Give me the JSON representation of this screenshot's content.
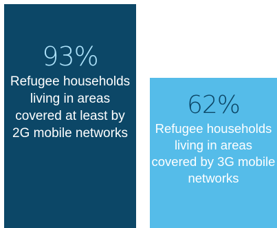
{
  "stats": [
    {
      "value": "93%",
      "caption": "Refugee households living in areas covered at least by 2G mobile networks",
      "background_color": "#0c4767",
      "value_color": "#aee3fb",
      "text_color": "#ffffff"
    },
    {
      "value": "62%",
      "caption": "Refugee households living in areas covered by 3G mobile networks",
      "background_color": "#55bce9",
      "value_color": "#0c4767",
      "text_color": "#ffffff"
    }
  ]
}
